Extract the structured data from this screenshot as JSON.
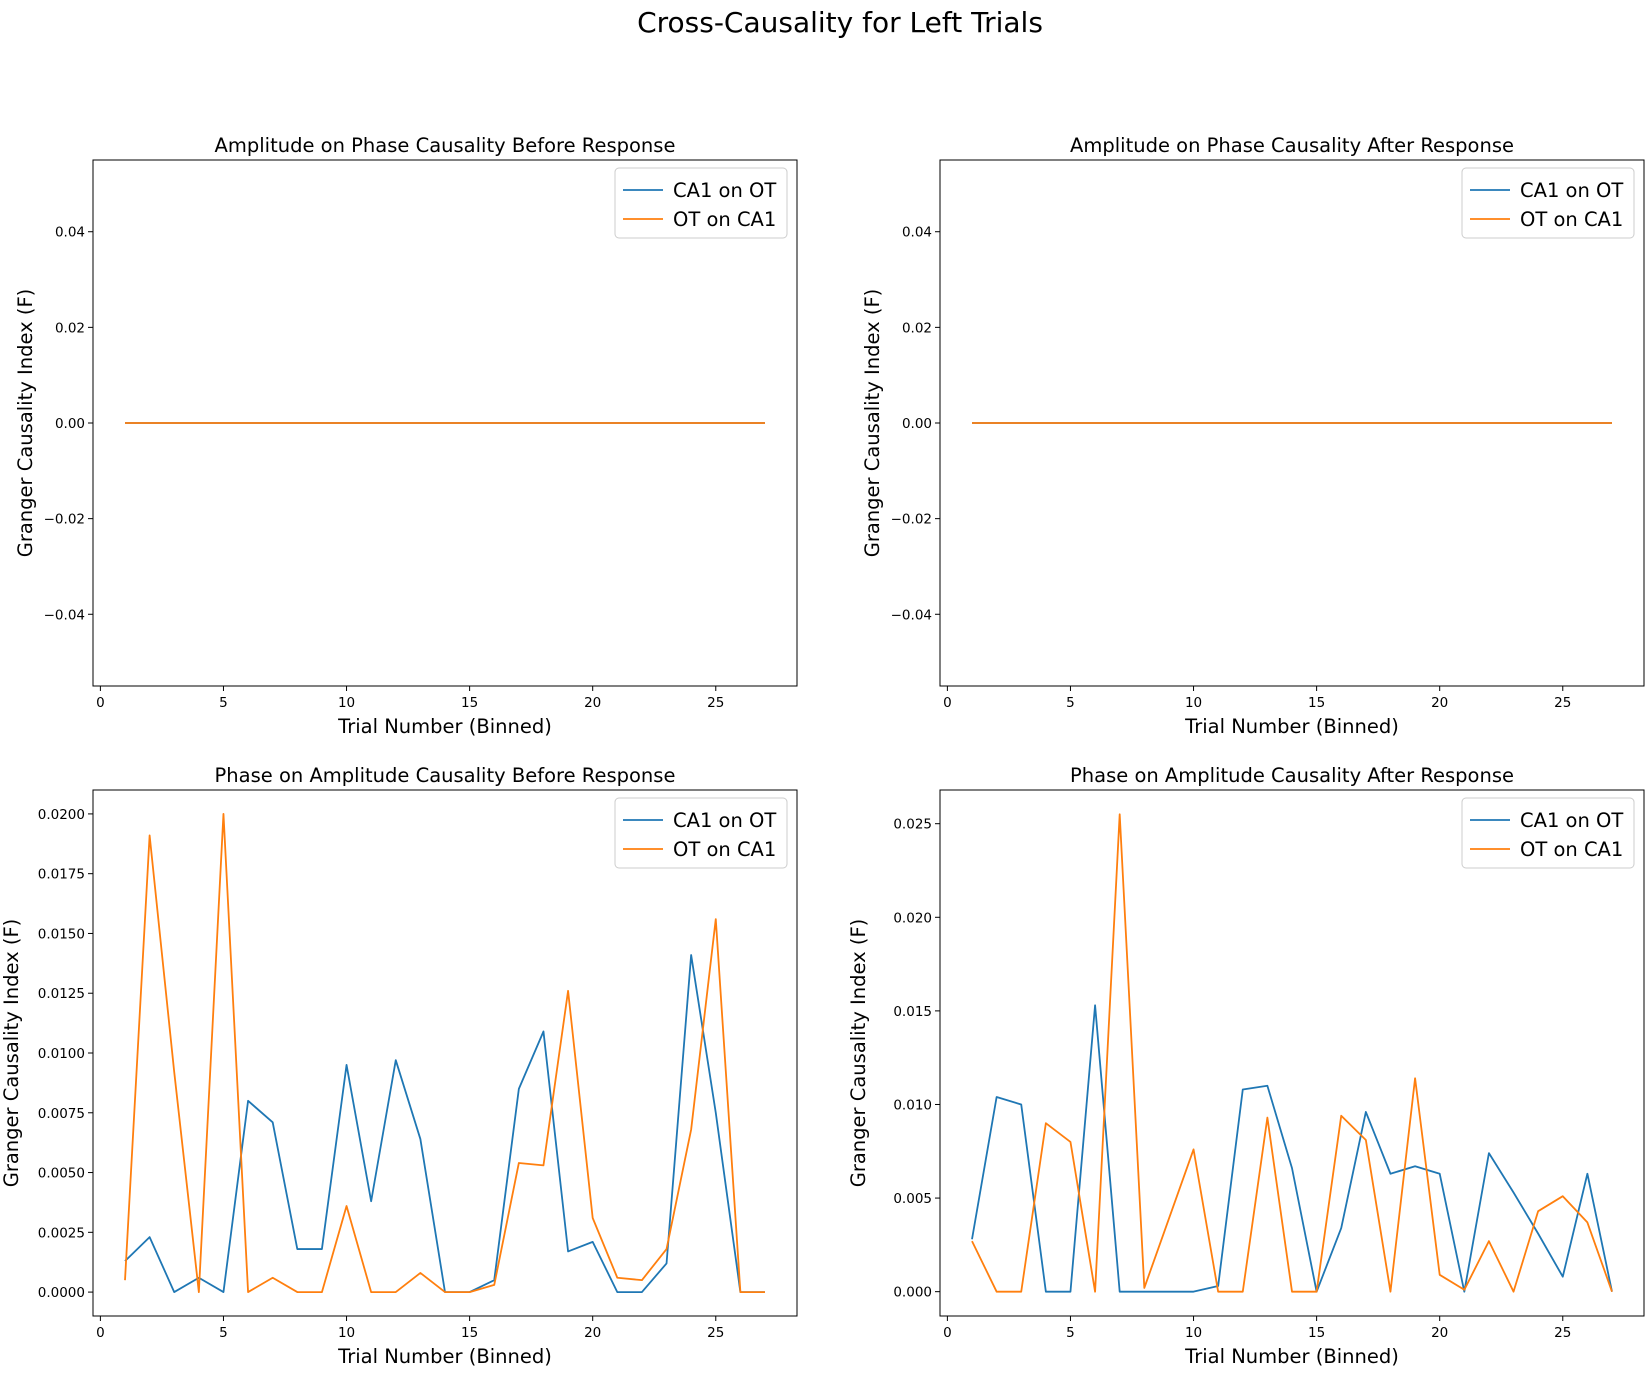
{
  "figure": {
    "title": "Cross-Causality for Left Trials"
  },
  "colors": {
    "ca1_on_ot": "#1f77b4",
    "ot_on_ca1": "#ff7f0e"
  },
  "chart_data": [
    {
      "type": "line",
      "title": "Amplitude on Phase Causality Before Response",
      "xlabel": "Trial Number (Binned)",
      "ylabel": "Granger Causality Index (F)",
      "xlim": [
        -0.3,
        28.3
      ],
      "ylim": [
        -0.055,
        0.055
      ],
      "xticks": [
        0,
        5,
        10,
        15,
        20,
        25
      ],
      "yticks": [
        -0.04,
        -0.02,
        0.0,
        0.02,
        0.04
      ],
      "ytick_labels": [
        "−0.04",
        "−0.02",
        "0.00",
        "0.02",
        "0.04"
      ],
      "legend": "upper-right",
      "x": [
        1,
        2,
        3,
        4,
        5,
        6,
        7,
        8,
        9,
        10,
        11,
        12,
        13,
        14,
        15,
        16,
        17,
        18,
        19,
        20,
        21,
        22,
        23,
        24,
        25,
        26,
        27
      ],
      "series": [
        {
          "name": "CA1 on OT",
          "color": "#1f77b4",
          "values": [
            0,
            0,
            0,
            0,
            0,
            0,
            0,
            0,
            0,
            0,
            0,
            0,
            0,
            0,
            0,
            0,
            0,
            0,
            0,
            0,
            0,
            0,
            0,
            0,
            0,
            0,
            0
          ]
        },
        {
          "name": "OT on CA1",
          "color": "#ff7f0e",
          "values": [
            0,
            0,
            0,
            0,
            0,
            0,
            0,
            0,
            0,
            0,
            0,
            0,
            0,
            0,
            0,
            0,
            0,
            0,
            0,
            0,
            0,
            0,
            0,
            0,
            0,
            0,
            0
          ]
        }
      ]
    },
    {
      "type": "line",
      "title": "Amplitude on Phase Causality After Response",
      "xlabel": "Trial Number (Binned)",
      "ylabel": "Granger Causality Index (F)",
      "xlim": [
        -0.3,
        28.3
      ],
      "ylim": [
        -0.055,
        0.055
      ],
      "xticks": [
        0,
        5,
        10,
        15,
        20,
        25
      ],
      "yticks": [
        -0.04,
        -0.02,
        0.0,
        0.02,
        0.04
      ],
      "ytick_labels": [
        "−0.04",
        "−0.02",
        "0.00",
        "0.02",
        "0.04"
      ],
      "legend": "upper-right",
      "x": [
        1,
        2,
        3,
        4,
        5,
        6,
        7,
        8,
        9,
        10,
        11,
        12,
        13,
        14,
        15,
        16,
        17,
        18,
        19,
        20,
        21,
        22,
        23,
        24,
        25,
        26,
        27
      ],
      "series": [
        {
          "name": "CA1 on OT",
          "color": "#1f77b4",
          "values": [
            0,
            0,
            0,
            0,
            0,
            0,
            0,
            0,
            0,
            0,
            0,
            0,
            0,
            0,
            0,
            0,
            0,
            0,
            0,
            0,
            0,
            0,
            0,
            0,
            0,
            0,
            0
          ]
        },
        {
          "name": "OT on CA1",
          "color": "#ff7f0e",
          "values": [
            0,
            0,
            0,
            0,
            0,
            0,
            0,
            0,
            0,
            0,
            0,
            0,
            0,
            0,
            0,
            0,
            0,
            0,
            0,
            0,
            0,
            0,
            0,
            0,
            0,
            0,
            0
          ]
        }
      ]
    },
    {
      "type": "line",
      "title": "Phase on Amplitude Causality Before Response",
      "xlabel": "Trial Number (Binned)",
      "ylabel": "Granger Causality Index (F)",
      "xlim": [
        -0.3,
        28.3
      ],
      "ylim": [
        -0.001,
        0.021
      ],
      "xticks": [
        0,
        5,
        10,
        15,
        20,
        25
      ],
      "yticks": [
        0.0,
        0.0025,
        0.005,
        0.0075,
        0.01,
        0.0125,
        0.015,
        0.0175,
        0.02
      ],
      "ytick_labels": [
        "0.0000",
        "0.0025",
        "0.0050",
        "0.0075",
        "0.0100",
        "0.0125",
        "0.0150",
        "0.0175",
        "0.0200"
      ],
      "legend": "upper-right",
      "x": [
        1,
        2,
        3,
        4,
        5,
        6,
        7,
        8,
        9,
        10,
        11,
        12,
        13,
        14,
        15,
        16,
        17,
        18,
        19,
        20,
        21,
        22,
        23,
        24,
        25,
        26,
        27
      ],
      "series": [
        {
          "name": "CA1 on OT",
          "color": "#1f77b4",
          "values": [
            0.0013,
            0.0023,
            0.0,
            0.0006,
            0.0,
            0.008,
            0.0071,
            0.0018,
            0.0018,
            0.0095,
            0.0038,
            0.0097,
            0.0064,
            0.0,
            0.0,
            0.0005,
            0.0085,
            0.0109,
            0.0017,
            0.0021,
            0.0,
            0.0,
            0.0012,
            0.0141,
            0.0075,
            0.0,
            0.0
          ]
        },
        {
          "name": "OT on CA1",
          "color": "#ff7f0e",
          "values": [
            0.0005,
            0.0191,
            0.0092,
            0.0,
            0.02,
            0.0,
            0.0006,
            0.0,
            0.0,
            0.0036,
            0.0,
            0.0,
            0.0008,
            0.0,
            0.0,
            0.0003,
            0.0054,
            0.0053,
            0.0126,
            0.0031,
            0.0006,
            0.0005,
            0.0018,
            0.0068,
            0.0156,
            0.0,
            0.0
          ]
        }
      ]
    },
    {
      "type": "line",
      "title": "Phase on Amplitude Causality After Response",
      "xlabel": "Trial Number (Binned)",
      "ylabel": "Granger Causality Index (F)",
      "xlim": [
        -0.3,
        28.3
      ],
      "ylim": [
        -0.0013,
        0.0268
      ],
      "xticks": [
        0,
        5,
        10,
        15,
        20,
        25
      ],
      "yticks": [
        0.0,
        0.005,
        0.01,
        0.015,
        0.02,
        0.025
      ],
      "ytick_labels": [
        "0.000",
        "0.005",
        "0.010",
        "0.015",
        "0.020",
        "0.025"
      ],
      "legend": "upper-right",
      "x": [
        1,
        2,
        3,
        4,
        5,
        6,
        7,
        8,
        9,
        10,
        11,
        12,
        13,
        14,
        15,
        16,
        17,
        18,
        19,
        20,
        21,
        22,
        23,
        24,
        25,
        26,
        27
      ],
      "series": [
        {
          "name": "CA1 on OT",
          "color": "#1f77b4",
          "values": [
            0.0028,
            0.0104,
            0.01,
            0.0,
            0.0,
            0.0153,
            0.0,
            0.0,
            0.0,
            0.0,
            0.0003,
            0.0108,
            0.011,
            0.0066,
            0.0,
            0.0034,
            0.0096,
            0.0063,
            0.0067,
            0.0063,
            0.0,
            0.0074,
            0.0053,
            0.0031,
            0.0008,
            0.0063,
            0.0
          ]
        },
        {
          "name": "OT on CA1",
          "color": "#ff7f0e",
          "values": [
            0.0027,
            0.0,
            0.0,
            0.009,
            0.008,
            0.0,
            0.0255,
            0.0002,
            0.0039,
            0.0076,
            0.0,
            0.0,
            0.0093,
            0.0,
            0.0,
            0.0094,
            0.0081,
            0.0,
            0.0114,
            0.0009,
            0.0001,
            0.0027,
            0.0,
            0.0043,
            0.0051,
            0.0037,
            0.0
          ]
        }
      ]
    }
  ]
}
